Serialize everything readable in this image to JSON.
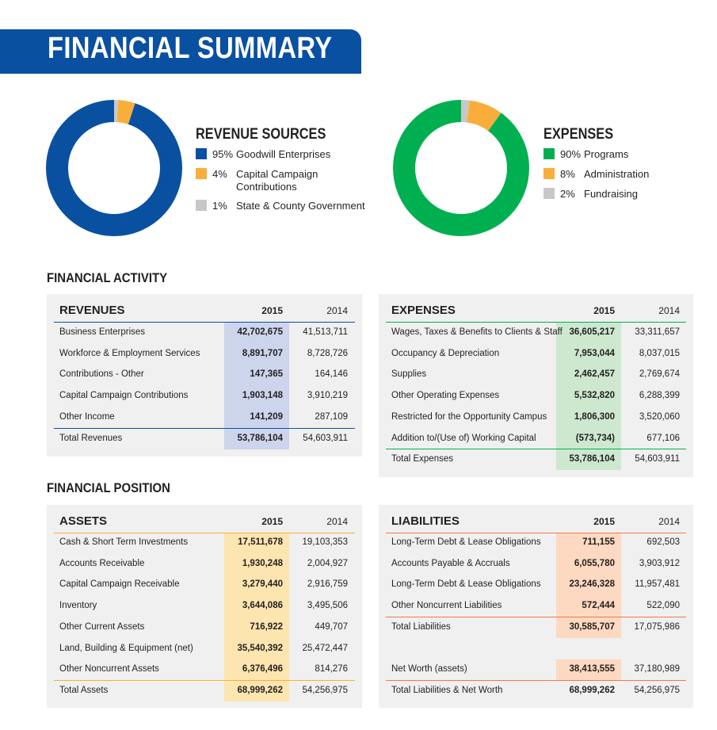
{
  "title": "FINANCIAL SUMMARY",
  "colors": {
    "brand_blue": "#0a50a1",
    "orange": "#f9ae3b",
    "gray": "#c8c8c8",
    "green": "#00b050",
    "revenue_column": "#cdd5ec",
    "expenses_column": "#cde8cf",
    "assets_column": "#fde5b0",
    "liabilities_column": "#fcd9c0"
  },
  "revenue_sources": {
    "title": "REVENUE SOURCES",
    "items": [
      {
        "pct": "95%",
        "label": "Goodwill Enterprises",
        "value": 95,
        "color": "#0a50a1"
      },
      {
        "pct": "4%",
        "label": "Capital Campaign Contributions",
        "value": 4,
        "color": "#f9ae3b"
      },
      {
        "pct": "1%",
        "label": "State & County Government",
        "value": 1,
        "color": "#c8c8c8"
      }
    ]
  },
  "expenses_breakdown": {
    "title": "EXPENSES",
    "items": [
      {
        "pct": "90%",
        "label": "Programs",
        "value": 90,
        "color": "#00b050"
      },
      {
        "pct": "8%",
        "label": "Administration",
        "value": 8,
        "color": "#f9ae3b"
      },
      {
        "pct": "2%",
        "label": "Fundraising",
        "value": 2,
        "color": "#c8c8c8"
      }
    ]
  },
  "financial_activity": {
    "heading": "FINANCIAL ACTIVITY",
    "revenues": {
      "title": "REVENUES",
      "col1": "2015",
      "col2": "2014",
      "rows": [
        {
          "label": "Business Enterprises",
          "v2015": "42,702,675",
          "v2014": "41,513,711"
        },
        {
          "label": "Workforce & Employment Services",
          "v2015": "8,891,707",
          "v2014": "8,728,726"
        },
        {
          "label": "Contributions - Other",
          "v2015": "147,365",
          "v2014": "164,146"
        },
        {
          "label": "Capital Campaign Contributions",
          "v2015": "1,903,148",
          "v2014": "3,910,219"
        },
        {
          "label": "Other Income",
          "v2015": "141,209",
          "v2014": "287,109"
        }
      ],
      "total": {
        "label": "Total Revenues",
        "v2015": "53,786,104",
        "v2014": "54,603,911"
      }
    },
    "expenses": {
      "title": "EXPENSES",
      "col1": "2015",
      "col2": "2014",
      "rows": [
        {
          "label": "Wages, Taxes & Benefits to Clients & Staff",
          "v2015": "36,605,217",
          "v2014": "33,311,657"
        },
        {
          "label": "Occupancy & Depreciation",
          "v2015": "7,953,044",
          "v2014": "8,037,015"
        },
        {
          "label": "Supplies",
          "v2015": "2,462,457",
          "v2014": "2,769,674"
        },
        {
          "label": "Other Operating Expenses",
          "v2015": "5,532,820",
          "v2014": "6,288,399"
        },
        {
          "label": "Restricted for the Opportunity Campus",
          "v2015": "1,806,300",
          "v2014": "3,520,060"
        },
        {
          "label": "Addition to/(Use of) Working Capital",
          "v2015": "(573,734)",
          "v2014": "677,106"
        }
      ],
      "total": {
        "label": "Total Expenses",
        "v2015": "53,786,104",
        "v2014": "54,603,911"
      }
    }
  },
  "financial_position": {
    "heading": "FINANCIAL POSITION",
    "assets": {
      "title": "ASSETS",
      "col1": "2015",
      "col2": "2014",
      "rows": [
        {
          "label": "Cash & Short Term Investments",
          "v2015": "17,511,678",
          "v2014": "19,103,353"
        },
        {
          "label": "Accounts Receivable",
          "v2015": "1,930,248",
          "v2014": "2,004,927"
        },
        {
          "label": "Capital Campaign Receivable",
          "v2015": "3,279,440",
          "v2014": "2,916,759"
        },
        {
          "label": "Inventory",
          "v2015": "3,644,086",
          "v2014": "3,495,506"
        },
        {
          "label": "Other Current Assets",
          "v2015": "716,922",
          "v2014": "449,707"
        },
        {
          "label": "Land, Building & Equipment (net)",
          "v2015": "35,540,392",
          "v2014": "25,472,447"
        },
        {
          "label": "Other Noncurrent Assets",
          "v2015": "6,376,496",
          "v2014": "814,276"
        }
      ],
      "total": {
        "label": "Total Assets",
        "v2015": "68,999,262",
        "v2014": "54,256,975"
      }
    },
    "liabilities": {
      "title": "LIABILITIES",
      "col1": "2015",
      "col2": "2014",
      "rows": [
        {
          "label": "Long-Term Debt & Lease Obligations",
          "v2015": "711,155",
          "v2014": "692,503"
        },
        {
          "label": "Accounts Payable & Accruals",
          "v2015": "6,055,780",
          "v2014": "3,903,912"
        },
        {
          "label": "Long-Term Debt & Lease Obligations",
          "v2015": "23,246,328",
          "v2014": "11,957,481"
        },
        {
          "label": "Other Noncurrent Liabilities",
          "v2015": "572,444",
          "v2014": "522,090"
        }
      ],
      "total": {
        "label": "Total Liabilities",
        "v2015": "30,585,707",
        "v2014": "17,075,986"
      },
      "net_worth": {
        "label": "Net Worth (assets)",
        "v2015": "38,413,555",
        "v2014": "37,180,989"
      },
      "grand_total": {
        "label": "Total Liabilities & Net Worth",
        "v2015": "68,999,262",
        "v2014": "54,256,975"
      }
    }
  }
}
